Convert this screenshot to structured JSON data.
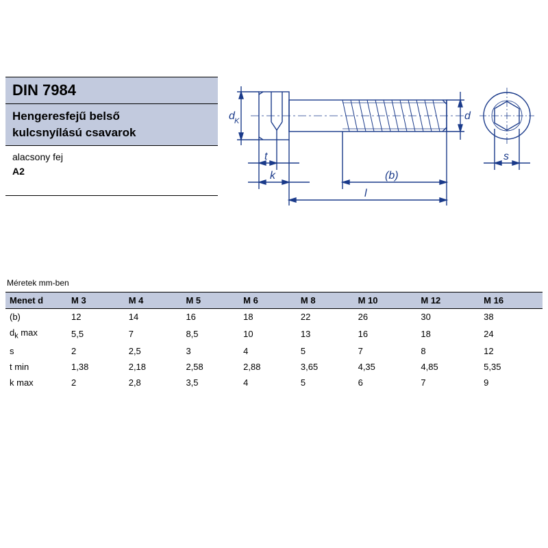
{
  "header": {
    "standard": "DIN 7984",
    "title_line1": "Hengeresfejű belső",
    "title_line2": "kulcsnyílású csavarok",
    "desc_line1": "alacsony fej",
    "desc_line2": "A2"
  },
  "diagram": {
    "stroke_color": "#1a3a8a",
    "stroke_width": 1.4,
    "labels": {
      "dk": "d",
      "dk_sub": "K",
      "t": "t",
      "k": "k",
      "l": "l",
      "b": "(b)",
      "d": "d",
      "s": "s"
    }
  },
  "table": {
    "caption": "Méretek mm-ben",
    "header_bg": "#c2cade",
    "columns": [
      "Menet d",
      "M 3",
      "M 4",
      "M 5",
      "M 6",
      "M 8",
      "M 10",
      "M 12",
      "M 16"
    ],
    "rows": [
      {
        "label": "(b)",
        "cells": [
          "12",
          "14",
          "16",
          "18",
          "22",
          "26",
          "30",
          "38"
        ]
      },
      {
        "label": "dₖ max",
        "label_html": "d<sub>k</sub> max",
        "cells": [
          "5,5",
          "7",
          "8,5",
          "10",
          "13",
          "16",
          "18",
          "24"
        ]
      },
      {
        "label": "s",
        "cells": [
          "2",
          "2,5",
          "3",
          "4",
          "5",
          "7",
          "8",
          "12"
        ]
      },
      {
        "label": "t min",
        "cells": [
          "1,38",
          "2,18",
          "2,58",
          "2,88",
          "3,65",
          "4,35",
          "4,85",
          "5,35"
        ]
      },
      {
        "label": "k max",
        "cells": [
          "2",
          "2,8",
          "3,5",
          "4",
          "5",
          "6",
          "7",
          "9"
        ]
      }
    ]
  }
}
